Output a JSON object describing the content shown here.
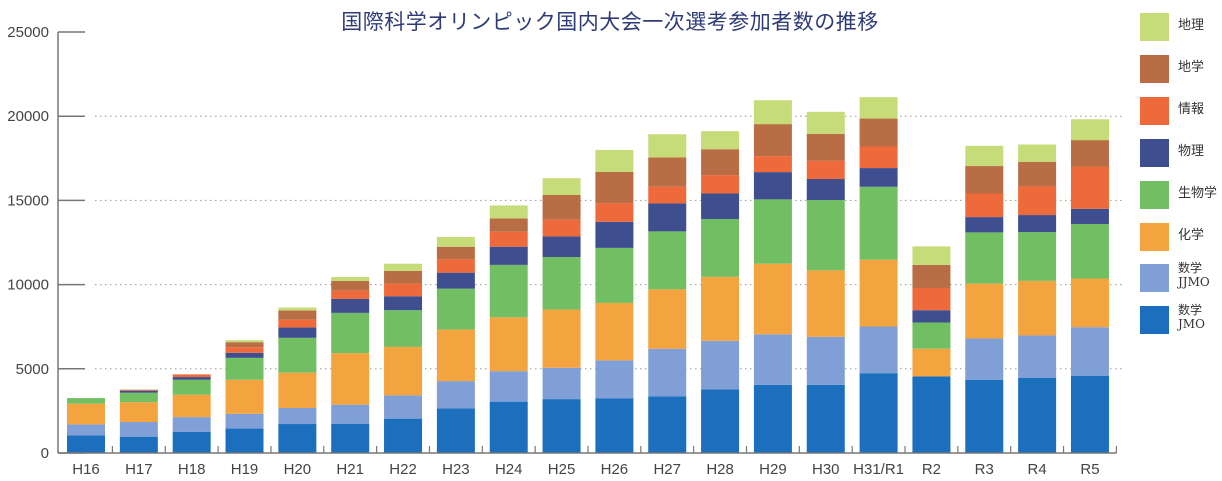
{
  "chart_data": {
    "type": "bar",
    "stacked": true,
    "title": "国際科学オリンピック国内大会一次選考参加者数の推移",
    "xlabel": "",
    "ylabel": "",
    "ylim": [
      0,
      25000
    ],
    "yticks": [
      0,
      5000,
      10000,
      15000,
      20000,
      25000
    ],
    "ytick_labels": [
      "0",
      "5000",
      "10000",
      "15000",
      "20000",
      "25000"
    ],
    "grid": "horizontal-dotted",
    "legend_position": "right",
    "categories": [
      "H16",
      "H17",
      "H18",
      "H19",
      "H20",
      "H21",
      "H22",
      "H23",
      "H24",
      "H25",
      "H26",
      "H27",
      "H28",
      "H29",
      "H30",
      "H31/R1",
      "R2",
      "R3",
      "R4",
      "R5"
    ],
    "series": [
      {
        "name": "数学JMO",
        "label_lines": "数学\nJMO",
        "color": "#1b6fbd",
        "values": [
          1050,
          970,
          1250,
          1450,
          1720,
          1740,
          2040,
          2650,
          3050,
          3200,
          3240,
          3360,
          3780,
          4050,
          4050,
          4740,
          4550,
          4350,
          4470,
          4590
        ]
      },
      {
        "name": "数学JJMO",
        "label_lines": "数学\nJJMO",
        "color": "#7f9fd6",
        "values": [
          650,
          870,
          880,
          880,
          950,
          1130,
          1380,
          1620,
          1810,
          1860,
          2260,
          2830,
          2880,
          3000,
          2850,
          2770,
          0,
          2450,
          2510,
          2880
        ]
      },
      {
        "name": "化学",
        "label_lines": "化学",
        "color": "#f3a43f",
        "values": [
          1230,
          1180,
          1330,
          2020,
          2100,
          3060,
          2880,
          3060,
          3200,
          3460,
          3410,
          3530,
          3800,
          4190,
          3950,
          3970,
          1640,
          3260,
          3240,
          2890
        ]
      },
      {
        "name": "生物学",
        "label_lines": "生物学",
        "color": "#72bf63",
        "values": [
          330,
          560,
          890,
          1300,
          2070,
          2390,
          2180,
          2430,
          3110,
          3120,
          3270,
          3440,
          3430,
          3820,
          4170,
          4330,
          1560,
          3040,
          2900,
          3240
        ]
      },
      {
        "name": "物理",
        "label_lines": "物理",
        "color": "#3f4e8f",
        "values": [
          0,
          120,
          160,
          300,
          610,
          830,
          830,
          950,
          1080,
          1220,
          1550,
          1660,
          1520,
          1620,
          1250,
          1110,
          730,
          910,
          1010,
          900
        ]
      },
      {
        "name": "情報",
        "label_lines": "情報",
        "color": "#ee6a3a",
        "values": [
          0,
          40,
          160,
          330,
          460,
          490,
          750,
          790,
          890,
          990,
          1110,
          990,
          1090,
          950,
          1080,
          1280,
          1320,
          1400,
          1700,
          2510
        ]
      },
      {
        "name": "地学",
        "label_lines": "地学",
        "color": "#b86d44",
        "values": [
          0,
          20,
          0,
          300,
          550,
          580,
          750,
          750,
          790,
          1470,
          1860,
          1740,
          1540,
          1900,
          1600,
          1660,
          1370,
          1630,
          1460,
          1570
        ]
      },
      {
        "name": "地理",
        "label_lines": "地理",
        "color": "#c5dc78",
        "values": [
          0,
          0,
          0,
          120,
          180,
          230,
          430,
          580,
          770,
          1000,
          1300,
          1380,
          1070,
          1420,
          1310,
          1270,
          1100,
          1200,
          1030,
          1240
        ]
      }
    ],
    "legend_order": [
      "地理",
      "地学",
      "情報",
      "物理",
      "生物学",
      "化学",
      "数学JJMO",
      "数学JMO"
    ]
  }
}
